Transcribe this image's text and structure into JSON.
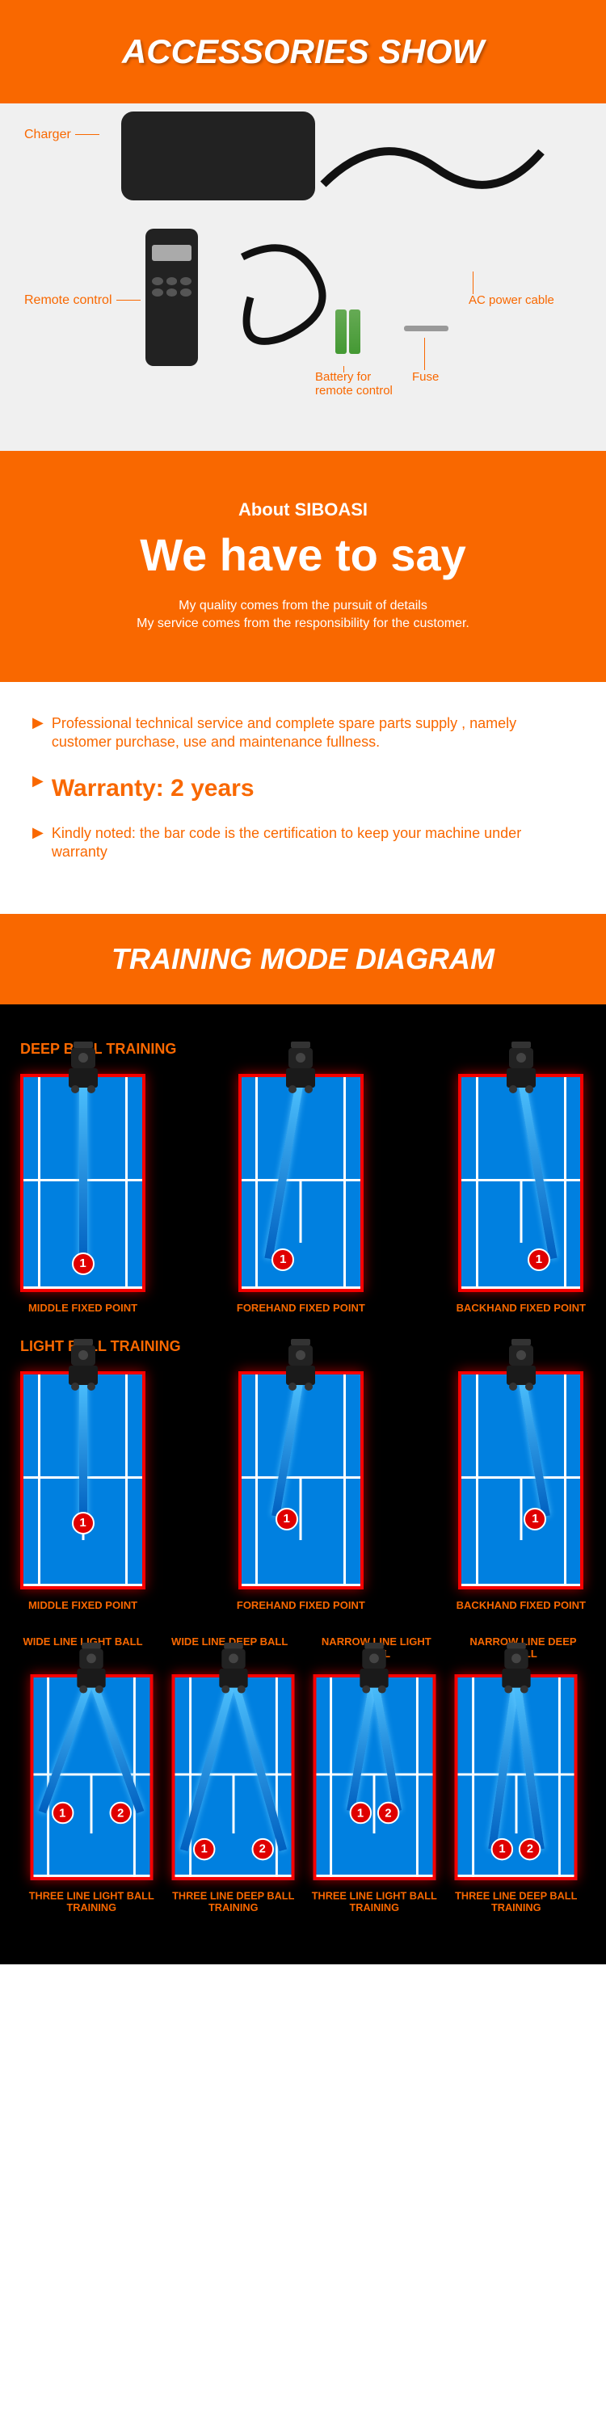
{
  "accessories": {
    "title": "ACCESSORIES SHOW",
    "labels": {
      "charger": "Charger",
      "remote": "Remote control",
      "battery": "Battery for\nremote control",
      "fuse": "Fuse",
      "ac_cable": "AC power cable"
    }
  },
  "about": {
    "sub": "About SIBOASI",
    "title": "We have to say",
    "desc1": "My quality comes from the pursuit of details",
    "desc2": "My service comes from the responsibility for the customer."
  },
  "info": {
    "item1": "Professional technical service and complete spare parts supply , namely customer purchase, use and maintenance fullness.",
    "warranty": "Warranty: 2 years",
    "item3": "Kindly noted: the bar code is the certification to keep your machine under warranty"
  },
  "training": {
    "header": "TRAINING MODE DIAGRAM",
    "deep": {
      "title": "DEEP BALL TRAINING",
      "courts": [
        {
          "label": "MIDDLE FIXED POINT",
          "points": [
            {
              "n": "1",
              "x": 50,
              "y": 88
            }
          ],
          "lines": [
            {
              "x": 50,
              "len": 87,
              "rot": 0
            }
          ]
        },
        {
          "label": "FOREHAND FIXED POINT",
          "points": [
            {
              "n": "1",
              "x": 35,
              "y": 86
            }
          ],
          "lines": [
            {
              "x": 50,
              "len": 87,
              "rot": 10
            }
          ]
        },
        {
          "label": "BACKHAND FIXED POINT",
          "points": [
            {
              "n": "1",
              "x": 65,
              "y": 86
            }
          ],
          "lines": [
            {
              "x": 50,
              "len": 87,
              "rot": -10
            }
          ]
        }
      ]
    },
    "light": {
      "title": "LIGHT BALL TRAINING",
      "courts": [
        {
          "label": "MIDDLE FIXED POINT",
          "points": [
            {
              "n": "1",
              "x": 50,
              "y": 70
            }
          ],
          "lines": [
            {
              "x": 50,
              "len": 68,
              "rot": 0
            }
          ]
        },
        {
          "label": "FOREHAND FIXED POINT",
          "points": [
            {
              "n": "1",
              "x": 38,
              "y": 68
            }
          ],
          "lines": [
            {
              "x": 50,
              "len": 68,
              "rot": 10
            }
          ]
        },
        {
          "label": "BACKHAND FIXED POINT",
          "points": [
            {
              "n": "1",
              "x": 62,
              "y": 68
            }
          ],
          "lines": [
            {
              "x": 50,
              "len": 68,
              "rot": -10
            }
          ]
        }
      ]
    },
    "multi": {
      "topLabels": [
        "WIDE LINE LIGHT BALL",
        "WIDE LINE DEEP BALL",
        "NARROW LINE LIGHT BALL",
        "NARROW LINE DEEP BALL"
      ],
      "courts": [
        {
          "label": "THREE LINE LIGHT BALL TRAINING",
          "points": [
            {
              "n": "1",
              "x": 25,
              "y": 68
            },
            {
              "n": "2",
              "x": 75,
              "y": 68
            }
          ],
          "lines": [
            {
              "x": 50,
              "len": 72,
              "rot": 20
            },
            {
              "x": 50,
              "len": 72,
              "rot": -20
            }
          ]
        },
        {
          "label": "THREE LINE DEEP BALL TRAINING",
          "points": [
            {
              "n": "1",
              "x": 25,
              "y": 86
            },
            {
              "n": "2",
              "x": 75,
              "y": 86
            }
          ],
          "lines": [
            {
              "x": 50,
              "len": 90,
              "rot": 16
            },
            {
              "x": 50,
              "len": 90,
              "rot": -16
            }
          ]
        },
        {
          "label": "THREE LINE LIGHT BALL TRAINING",
          "points": [
            {
              "n": "1",
              "x": 38,
              "y": 68
            },
            {
              "n": "2",
              "x": 62,
              "y": 68
            }
          ],
          "lines": [
            {
              "x": 50,
              "len": 68,
              "rot": 10
            },
            {
              "x": 50,
              "len": 68,
              "rot": -10
            }
          ]
        },
        {
          "label": "THREE LINE DEEP BALL TRAINING",
          "points": [
            {
              "n": "1",
              "x": 38,
              "y": 86
            },
            {
              "n": "2",
              "x": 62,
              "y": 86
            }
          ],
          "lines": [
            {
              "x": 50,
              "len": 87,
              "rot": 8
            },
            {
              "x": 50,
              "len": 87,
              "rot": -8
            }
          ]
        }
      ]
    }
  }
}
